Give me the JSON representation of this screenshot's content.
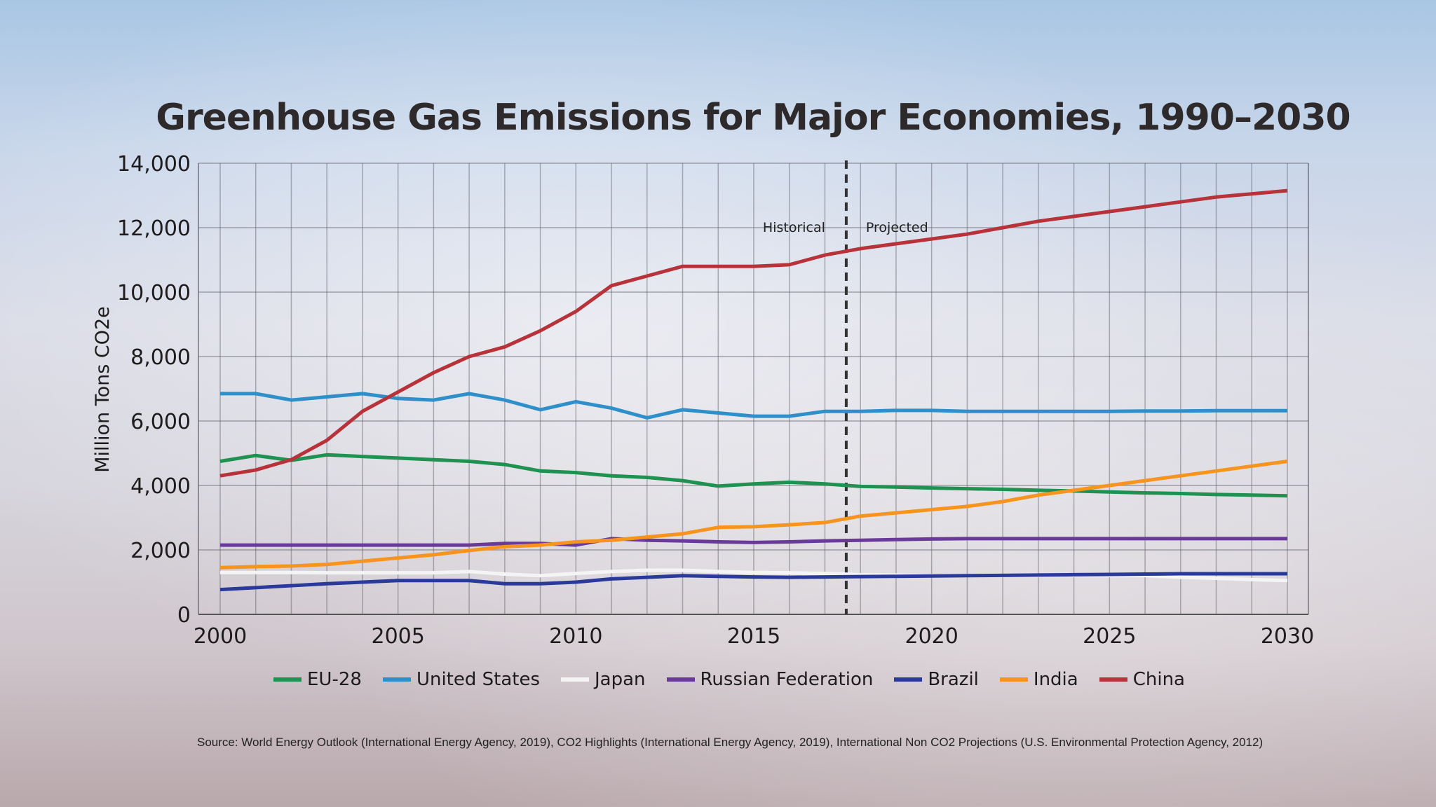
{
  "chart_data": {
    "type": "line",
    "title": "Greenhouse Gas Emissions for Major Economies, 1990–2030",
    "xlabel": "",
    "ylabel": "Million Tons CO2e",
    "xlim": [
      2000,
      2030
    ],
    "ylim": [
      0,
      14000
    ],
    "x_ticks": [
      "2000",
      "2005",
      "2010",
      "2015",
      "2020",
      "2025",
      "2030"
    ],
    "y_ticks": [
      "0",
      "2,000",
      "4,000",
      "6,000",
      "8,000",
      "10,000",
      "12,000",
      "14,000"
    ],
    "grid": true,
    "legend_position": "bottom",
    "annotations": {
      "divider_year": 2017.6,
      "left_label": "Historical",
      "right_label": "Projected"
    },
    "source": "Source: World Energy Outlook (International Energy Agency, 2019), CO2 Highlights (International Energy Agency, 2019), International Non CO2 Projections (U.S. Environmental Protection Agency, 2012)",
    "x": [
      2000,
      2001,
      2002,
      2003,
      2004,
      2005,
      2006,
      2007,
      2008,
      2009,
      2010,
      2011,
      2012,
      2013,
      2014,
      2015,
      2016,
      2017,
      2018,
      2019,
      2020,
      2021,
      2022,
      2023,
      2024,
      2025,
      2026,
      2027,
      2028,
      2029,
      2030
    ],
    "series": [
      {
        "name": "EU-28",
        "color": "#1f9150",
        "values": [
          4750,
          4930,
          4780,
          4950,
          4900,
          4850,
          4800,
          4750,
          4650,
          4450,
          4400,
          4300,
          4250,
          4150,
          3980,
          4050,
          4100,
          4050,
          3970,
          3950,
          3920,
          3900,
          3880,
          3850,
          3830,
          3800,
          3770,
          3750,
          3720,
          3700,
          3680
        ]
      },
      {
        "name": "United States",
        "color": "#2f8fc9",
        "values": [
          6850,
          6850,
          6650,
          6750,
          6850,
          6700,
          6650,
          6850,
          6650,
          6350,
          6600,
          6400,
          6100,
          6350,
          6250,
          6150,
          6150,
          6300,
          6300,
          6330,
          6330,
          6300,
          6300,
          6300,
          6300,
          6300,
          6310,
          6310,
          6320,
          6320,
          6320
        ]
      },
      {
        "name": "Japan",
        "color": "#f4f4f4",
        "values": [
          1300,
          1300,
          1300,
          1290,
          1290,
          1290,
          1290,
          1330,
          1250,
          1200,
          1270,
          1330,
          1370,
          1370,
          1330,
          1300,
          1290,
          1270,
          1230,
          1220,
          1200,
          1200,
          1200,
          1200,
          1200,
          1200,
          1200,
          1150,
          1120,
          1080,
          1050
        ]
      },
      {
        "name": "Russian Federation",
        "color": "#6a3a9a",
        "values": [
          2150,
          2150,
          2150,
          2150,
          2150,
          2150,
          2150,
          2150,
          2200,
          2200,
          2150,
          2350,
          2300,
          2280,
          2250,
          2230,
          2250,
          2280,
          2300,
          2320,
          2340,
          2350,
          2350,
          2350,
          2350,
          2350,
          2350,
          2350,
          2350,
          2350,
          2350
        ]
      },
      {
        "name": "Brazil",
        "color": "#2a3a9a",
        "values": [
          770,
          830,
          890,
          950,
          1000,
          1050,
          1050,
          1050,
          950,
          950,
          1000,
          1100,
          1150,
          1200,
          1180,
          1160,
          1150,
          1160,
          1170,
          1180,
          1190,
          1200,
          1210,
          1220,
          1230,
          1240,
          1250,
          1260,
          1260,
          1260,
          1260
        ]
      },
      {
        "name": "India",
        "color": "#f7941d",
        "values": [
          1450,
          1480,
          1500,
          1550,
          1650,
          1750,
          1850,
          1980,
          2100,
          2150,
          2250,
          2300,
          2400,
          2500,
          2700,
          2720,
          2780,
          2850,
          3050,
          3150,
          3250,
          3350,
          3500,
          3700,
          3850,
          4000,
          4150,
          4300,
          4450,
          4600,
          4750
        ]
      },
      {
        "name": "China",
        "color": "#b8323a",
        "values": [
          4300,
          4480,
          4800,
          5400,
          6300,
          6900,
          7500,
          8000,
          8300,
          8800,
          9400,
          10200,
          10500,
          10800,
          10800,
          10800,
          10850,
          11150,
          11350,
          11500,
          11650,
          11800,
          12000,
          12200,
          12350,
          12500,
          12650,
          12800,
          12950,
          13050,
          13150
        ]
      }
    ]
  }
}
